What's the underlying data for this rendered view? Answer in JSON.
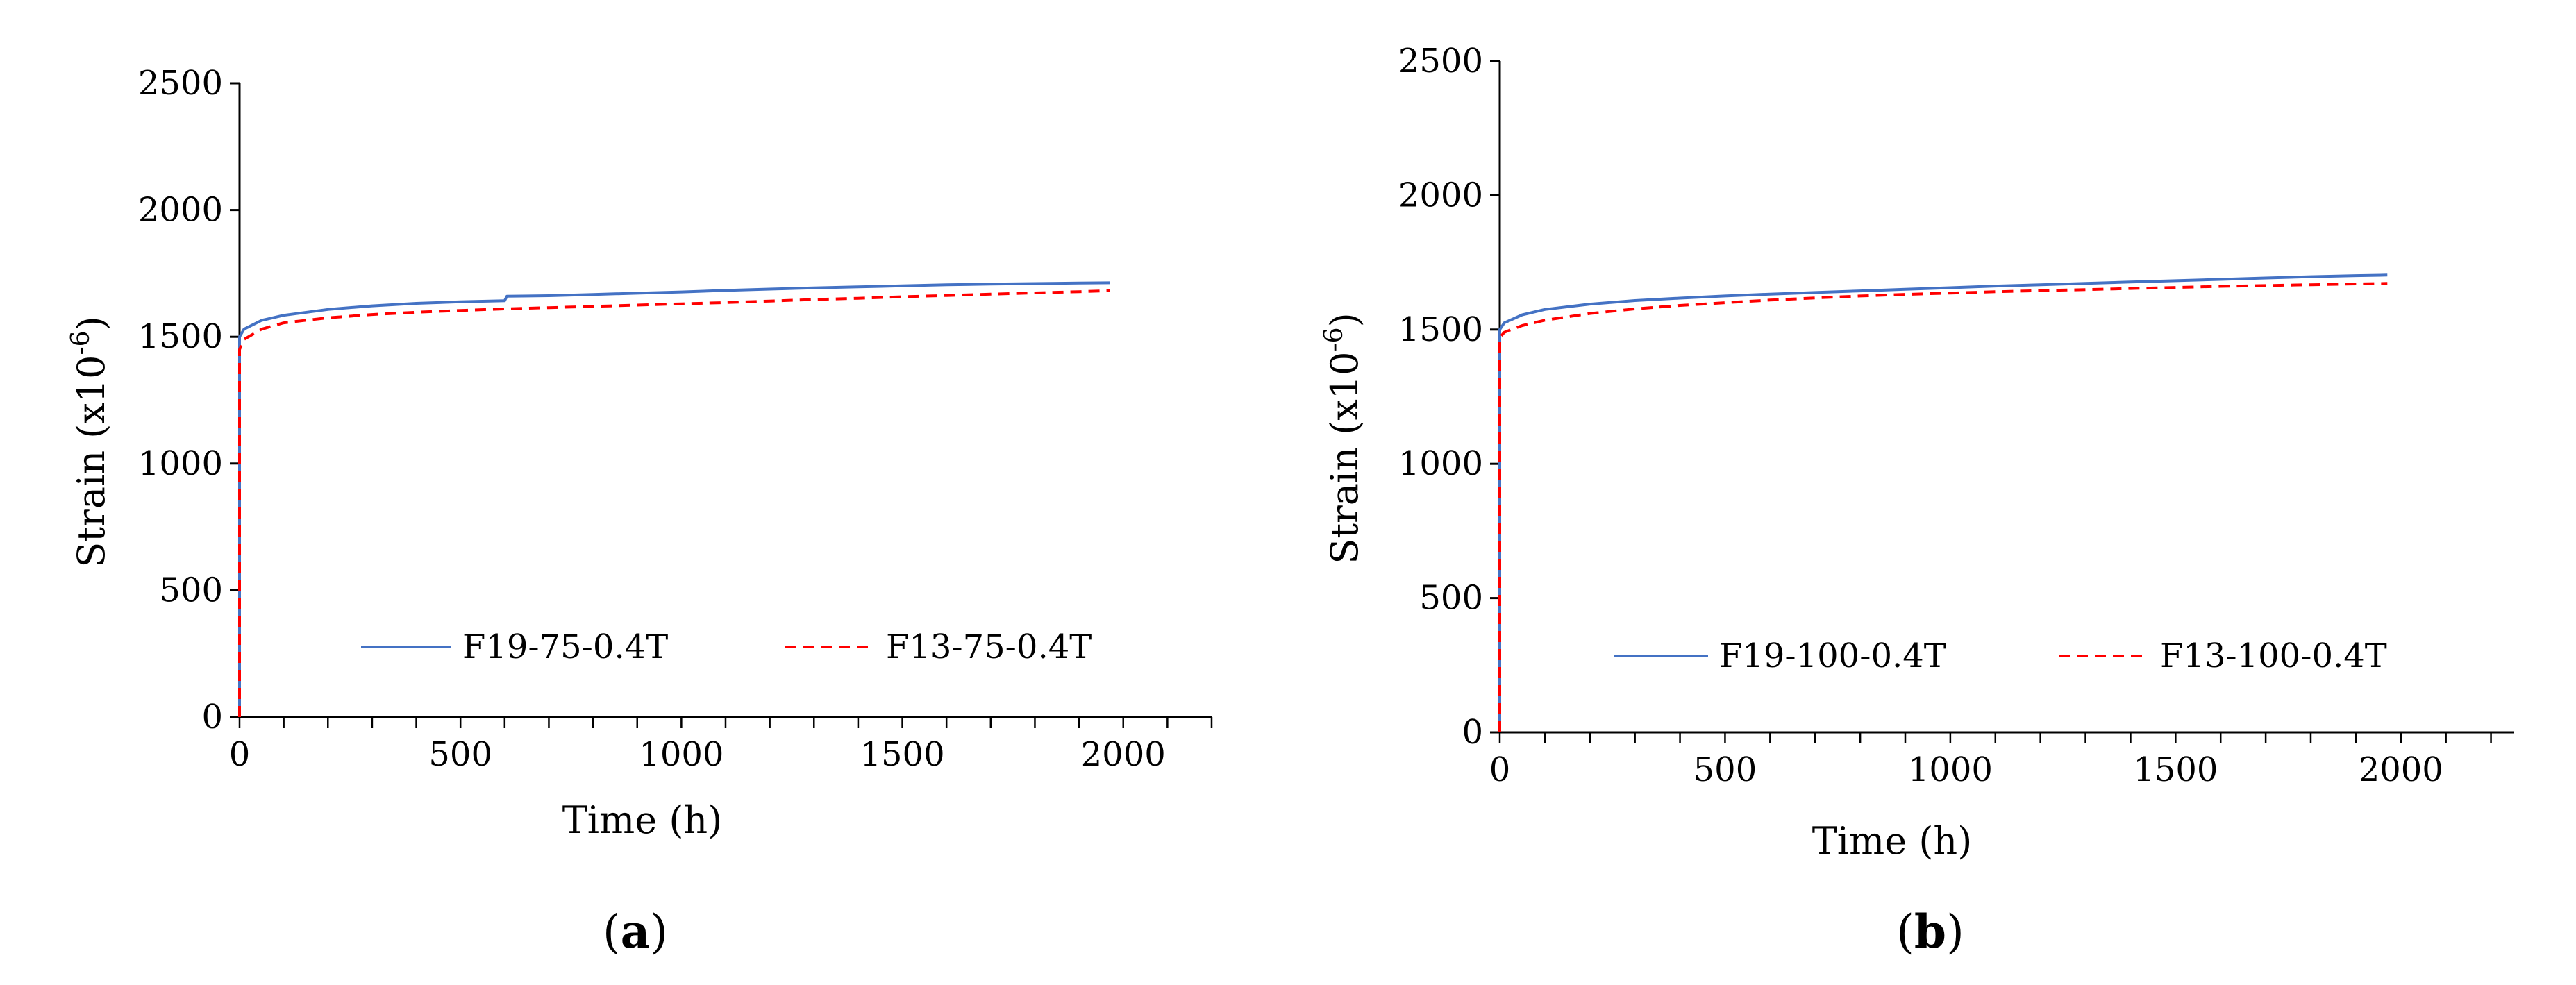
{
  "chart_data": [
    {
      "type": "line",
      "panel_label": "a",
      "xlabel": "Time (h)",
      "ylabel": "Strain (x10",
      "ylabel_sup": "-6",
      "ylabel_close": ")",
      "xlim": [
        0,
        2200
      ],
      "ylim": [
        0,
        2500
      ],
      "xticks": [
        0,
        500,
        1000,
        1500,
        2000
      ],
      "yticks": [
        0,
        500,
        1000,
        1500,
        2000,
        2500
      ],
      "grid": false,
      "legend_position": "bottom-center, horizontal",
      "series": [
        {
          "name": "F19-75-0.4T",
          "color": "#4472C4",
          "line_style": "solid",
          "x": [
            0,
            0,
            10,
            50,
            100,
            200,
            300,
            400,
            500,
            600,
            605,
            700,
            800,
            900,
            1000,
            1100,
            1200,
            1300,
            1400,
            1500,
            1600,
            1700,
            1800,
            1900,
            1970
          ],
          "y": [
            0,
            1500,
            1530,
            1565,
            1585,
            1608,
            1622,
            1632,
            1638,
            1642,
            1660,
            1662,
            1667,
            1672,
            1677,
            1683,
            1688,
            1693,
            1697,
            1701,
            1705,
            1708,
            1710,
            1712,
            1713
          ]
        },
        {
          "name": "F13-75-0.4T",
          "color": "#FF0000",
          "line_style": "dashed",
          "x": [
            0,
            0,
            10,
            50,
            100,
            200,
            300,
            400,
            500,
            600,
            700,
            800,
            900,
            1000,
            1100,
            1200,
            1300,
            1400,
            1500,
            1600,
            1700,
            1800,
            1900,
            1970
          ],
          "y": [
            0,
            1450,
            1490,
            1530,
            1555,
            1575,
            1588,
            1597,
            1604,
            1610,
            1615,
            1620,
            1625,
            1630,
            1635,
            1641,
            1647,
            1652,
            1658,
            1663,
            1668,
            1673,
            1678,
            1682
          ]
        }
      ]
    },
    {
      "type": "line",
      "panel_label": "b",
      "xlabel": "Time (h)",
      "ylabel": "Strain (x10",
      "ylabel_sup": "-6",
      "ylabel_close": ")",
      "xlim": [
        0,
        2250
      ],
      "ylim": [
        0,
        2500
      ],
      "xticks": [
        0,
        500,
        1000,
        1500,
        2000
      ],
      "yticks": [
        0,
        500,
        1000,
        1500,
        2000,
        2500
      ],
      "grid": false,
      "legend_position": "bottom-center, horizontal",
      "series": [
        {
          "name": "F19-100-0.4T",
          "color": "#4472C4",
          "line_style": "solid",
          "x": [
            0,
            0,
            10,
            50,
            100,
            200,
            300,
            400,
            500,
            600,
            700,
            800,
            900,
            1000,
            1100,
            1200,
            1300,
            1400,
            1500,
            1600,
            1700,
            1800,
            1900,
            1970
          ],
          "y": [
            0,
            1500,
            1525,
            1555,
            1575,
            1595,
            1608,
            1617,
            1625,
            1632,
            1638,
            1644,
            1650,
            1656,
            1662,
            1667,
            1672,
            1677,
            1682,
            1687,
            1692,
            1697,
            1701,
            1703
          ]
        },
        {
          "name": "F13-100-0.4T",
          "color": "#FF0000",
          "line_style": "dashed",
          "x": [
            0,
            0,
            10,
            50,
            100,
            200,
            300,
            400,
            500,
            600,
            700,
            800,
            900,
            1000,
            1100,
            1200,
            1300,
            1400,
            1500,
            1600,
            1700,
            1800,
            1900,
            1970
          ],
          "y": [
            0,
            1470,
            1490,
            1515,
            1535,
            1560,
            1577,
            1590,
            1600,
            1610,
            1618,
            1625,
            1631,
            1636,
            1641,
            1645,
            1649,
            1653,
            1657,
            1661,
            1664,
            1667,
            1670,
            1672
          ]
        }
      ]
    }
  ]
}
